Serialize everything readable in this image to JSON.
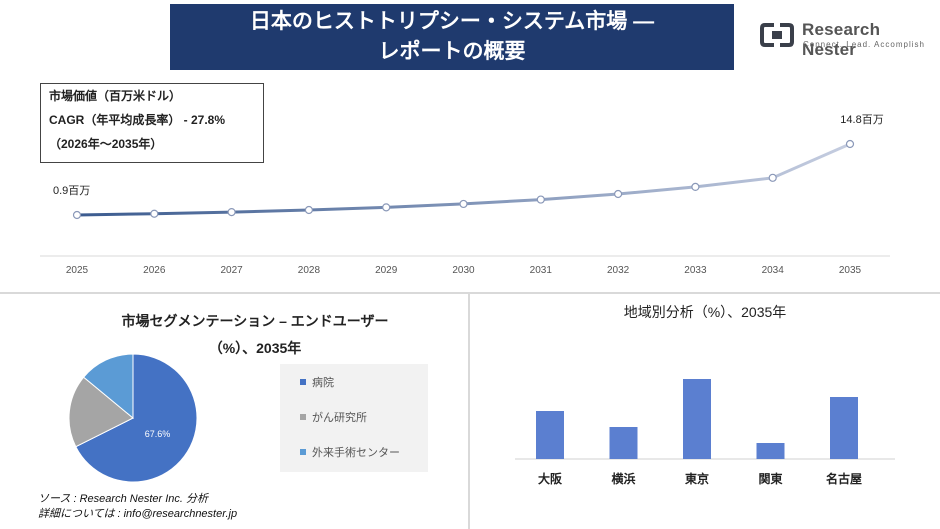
{
  "header": {
    "title_line1": "日本のヒストトリプシー・システム市場 —",
    "title_line2": "レポートの概要"
  },
  "logo": {
    "name": "Research Nester",
    "tagline": "Connect. Lead. Accomplish",
    "icon": "research-nester-logo-icon",
    "colors": {
      "mark": "#3a3f4a",
      "text": "#555555"
    }
  },
  "info_box": {
    "line1": "市場価値（百万米ドル）",
    "line2": "CAGR（年平均成長率） - 27.8%",
    "line3": "（2026年～2035年）"
  },
  "source": {
    "line1": "ソース : Research Nester Inc. 分析",
    "line2": "詳細については : info@researchnester.jp"
  },
  "colors": {
    "header_bg": "#1f3a6e",
    "line_start": "#3b5b8f",
    "line_end": "#c5cde0",
    "bar": "#5b7fd0",
    "pie_hospital": "#4472c4",
    "pie_cancer": "#a5a5a5",
    "pie_outpatient": "#5b9bd5"
  },
  "chart_data": [
    {
      "type": "line",
      "title": "",
      "x": [
        "2025",
        "2026",
        "2027",
        "2028",
        "2029",
        "2030",
        "2031",
        "2032",
        "2033",
        "2034",
        "2035"
      ],
      "series": [
        {
          "values": [
            0.9,
            1.15,
            1.47,
            1.88,
            2.4,
            3.07,
            3.92,
            5.01,
            6.4,
            8.18,
            14.8
          ]
        }
      ],
      "labels": {
        "start": "0.9百万",
        "end": "14.8百万"
      },
      "grid": false
    },
    {
      "type": "pie",
      "title_line1": "市場セグメンテーション – エンドユーザー",
      "title_line2": "（%）、2035年",
      "slices": [
        {
          "name": "病院",
          "value": 67.6,
          "label": "67.6%"
        },
        {
          "name": "がん研究所",
          "value": 18.4
        },
        {
          "name": "外来手術センター",
          "value": 14.0
        }
      ],
      "legend_position": "right"
    },
    {
      "type": "bar",
      "title": "地域別分析（%）、2035年",
      "categories": [
        "大阪",
        "横浜",
        "東京",
        "関東",
        "名古屋"
      ],
      "values": [
        24,
        16,
        40,
        8,
        31
      ],
      "grid": false
    }
  ]
}
